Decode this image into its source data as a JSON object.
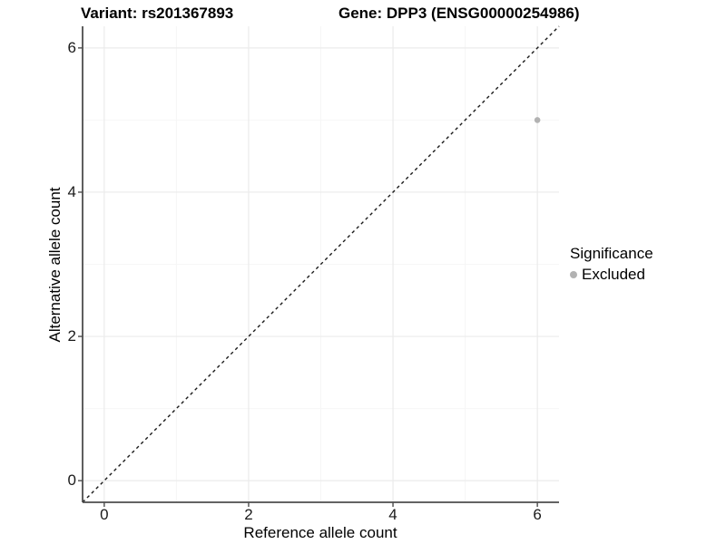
{
  "chart_data": {
    "type": "scatter",
    "title_left": "Variant: rs201367893",
    "title_right": "Gene: DPP3 (ENSG00000254986)",
    "xlabel": "Reference allele count",
    "ylabel": "Alternative allele count",
    "xlim": [
      -0.3,
      6.3
    ],
    "ylim": [
      -0.3,
      6.3
    ],
    "xticks": [
      0,
      2,
      4,
      6
    ],
    "yticks": [
      0,
      2,
      4,
      6
    ],
    "grid_major": [
      0,
      2,
      4,
      6
    ],
    "grid_minor": [
      1,
      3,
      5
    ],
    "grid": "on",
    "reference_line": {
      "type": "identity y=x",
      "style": "dashed",
      "from": [
        -0.3,
        -0.3
      ],
      "to": [
        6.3,
        6.3
      ]
    },
    "points": [
      {
        "x": 6,
        "y": 5,
        "significance": "Excluded"
      }
    ],
    "legend": {
      "title": "Significance",
      "position": "right",
      "items": [
        {
          "label": "Excluded",
          "color": "#b2b2b2"
        }
      ]
    }
  },
  "colors": {
    "background": "#ffffff",
    "point": "#b2b2b2",
    "grid_major": "#ebebeb",
    "grid_minor": "#f6f6f6",
    "axis_line": "#4d4d4d",
    "tick_mark": "#4d4d4d",
    "reference_line": "#1a1a1a",
    "text": "#000000"
  }
}
